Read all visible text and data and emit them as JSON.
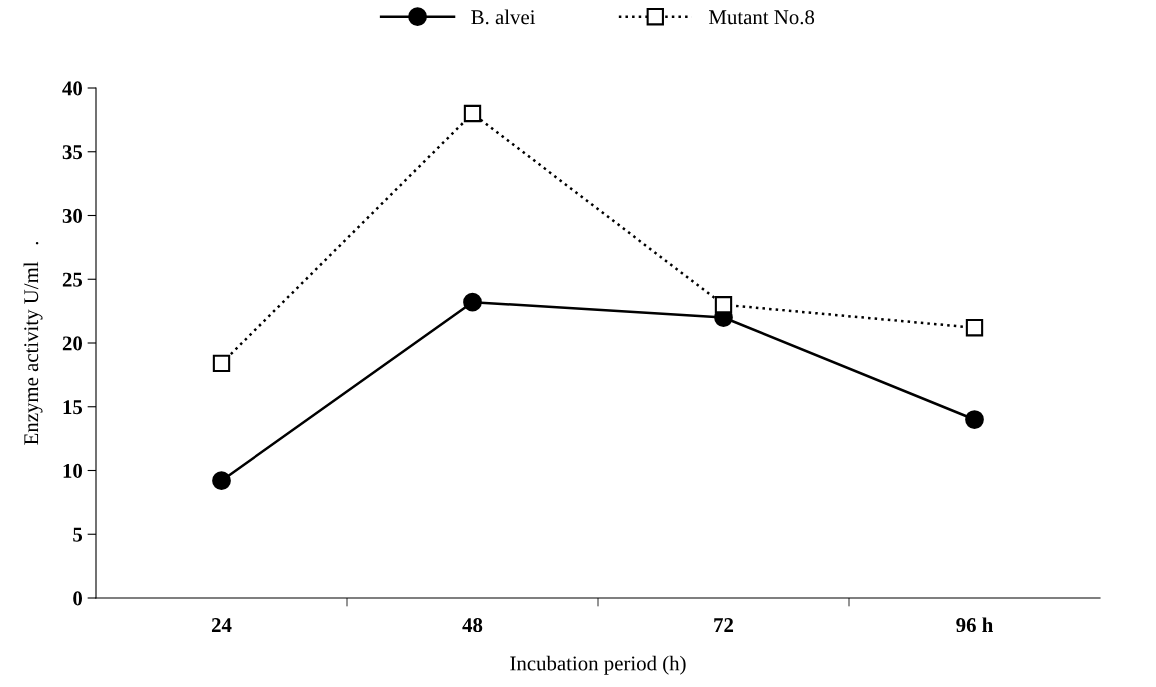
{
  "chart_data": {
    "type": "line",
    "xlabel": "Incubation period (h)",
    "ylabel": "Enzyme activity U/ml   .",
    "categories": [
      "24",
      "48",
      "72",
      "96 h"
    ],
    "series": [
      {
        "name": "B. alvei",
        "color": "#000000",
        "marker": "circle",
        "line_style": "solid",
        "values": [
          9.2,
          23.2,
          22.0,
          14.0
        ]
      },
      {
        "name": "Mutant No.8",
        "color": "#000000",
        "marker": "square",
        "line_style": "dotted",
        "values": [
          18.4,
          38.0,
          23.0,
          21.2
        ]
      }
    ],
    "ylim": [
      0,
      40
    ],
    "yticks": [
      0,
      5,
      10,
      15,
      20,
      25,
      30,
      35,
      40
    ],
    "grid": false,
    "legend": "top"
  }
}
